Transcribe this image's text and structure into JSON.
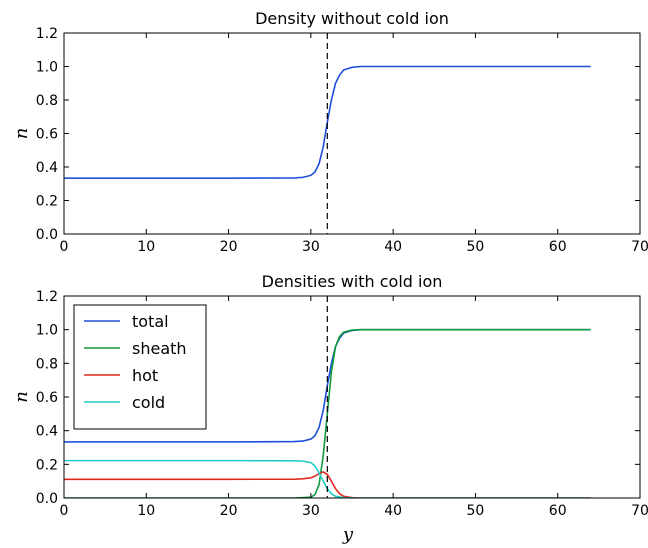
{
  "chart_data": [
    {
      "type": "line",
      "title": "Density without cold ion",
      "xlabel": "",
      "ylabel": "n",
      "xlim": [
        0,
        70
      ],
      "ylim": [
        0,
        1.2
      ],
      "xticks": [
        "0",
        "10",
        "20",
        "30",
        "40",
        "50",
        "60",
        "70"
      ],
      "yticks": [
        "0.0",
        "0.2",
        "0.4",
        "0.6",
        "0.8",
        "1.0",
        "1.2"
      ],
      "grid": false,
      "legend": null,
      "vline": {
        "x": 32,
        "style": "dashed",
        "color": "#000000"
      },
      "series": [
        {
          "color": "#1f4fd8",
          "points": [
            [
              0,
              0.333
            ],
            [
              10,
              0.333
            ],
            [
              20,
              0.333
            ],
            [
              28,
              0.335
            ],
            [
              29,
              0.338
            ],
            [
              30,
              0.35
            ],
            [
              30.5,
              0.37
            ],
            [
              31,
              0.42
            ],
            [
              31.5,
              0.52
            ],
            [
              32,
              0.667
            ],
            [
              32.5,
              0.8
            ],
            [
              33,
              0.9
            ],
            [
              33.5,
              0.95
            ],
            [
              34,
              0.98
            ],
            [
              35,
              0.995
            ],
            [
              36,
              1.0
            ],
            [
              40,
              1.0
            ],
            [
              50,
              1.0
            ],
            [
              60,
              1.0
            ],
            [
              64,
              1.0
            ]
          ]
        }
      ]
    },
    {
      "type": "line",
      "title": "Densities with cold ion",
      "xlabel": "y",
      "ylabel": "n",
      "xlim": [
        0,
        70
      ],
      "ylim": [
        0,
        1.2
      ],
      "xticks": [
        "0",
        "10",
        "20",
        "30",
        "40",
        "50",
        "60",
        "70"
      ],
      "yticks": [
        "0.0",
        "0.2",
        "0.4",
        "0.6",
        "0.8",
        "1.0",
        "1.2"
      ],
      "grid": false,
      "legend": "top-left",
      "vline": {
        "x": 32,
        "style": "dashed",
        "color": "#000000"
      },
      "series": [
        {
          "name": "total",
          "color": "#1f4fd8",
          "points": [
            [
              0,
              0.333
            ],
            [
              10,
              0.333
            ],
            [
              20,
              0.333
            ],
            [
              28,
              0.335
            ],
            [
              29,
              0.338
            ],
            [
              30,
              0.35
            ],
            [
              30.5,
              0.37
            ],
            [
              31,
              0.42
            ],
            [
              31.5,
              0.52
            ],
            [
              32,
              0.667
            ],
            [
              32.5,
              0.8
            ],
            [
              33,
              0.9
            ],
            [
              33.5,
              0.95
            ],
            [
              34,
              0.98
            ],
            [
              35,
              0.995
            ],
            [
              36,
              1.0
            ],
            [
              40,
              1.0
            ],
            [
              50,
              1.0
            ],
            [
              60,
              1.0
            ],
            [
              64,
              1.0
            ]
          ]
        },
        {
          "name": "sheath",
          "color": "#109a3c",
          "points": [
            [
              0,
              0
            ],
            [
              28,
              0
            ],
            [
              30,
              0.005
            ],
            [
              30.5,
              0.02
            ],
            [
              31,
              0.08
            ],
            [
              31.5,
              0.25
            ],
            [
              32,
              0.5
            ],
            [
              32.5,
              0.75
            ],
            [
              33,
              0.9
            ],
            [
              33.5,
              0.96
            ],
            [
              34,
              0.985
            ],
            [
              35,
              0.998
            ],
            [
              36,
              1.0
            ],
            [
              40,
              1.0
            ],
            [
              50,
              1.0
            ],
            [
              60,
              1.0
            ],
            [
              64,
              1.0
            ]
          ]
        },
        {
          "name": "hot",
          "color": "#dd2b1f",
          "points": [
            [
              0,
              0.111
            ],
            [
              10,
              0.111
            ],
            [
              20,
              0.111
            ],
            [
              28,
              0.112
            ],
            [
              29,
              0.114
            ],
            [
              30,
              0.12
            ],
            [
              30.5,
              0.13
            ],
            [
              31,
              0.145
            ],
            [
              31.5,
              0.155
            ],
            [
              32,
              0.14
            ],
            [
              32.5,
              0.1
            ],
            [
              33,
              0.055
            ],
            [
              33.5,
              0.025
            ],
            [
              34,
              0.01
            ],
            [
              35,
              0.002
            ],
            [
              36,
              0
            ],
            [
              50,
              0
            ],
            [
              64,
              0
            ]
          ]
        },
        {
          "name": "cold",
          "color": "#22cccc",
          "points": [
            [
              0,
              0.222
            ],
            [
              10,
              0.222
            ],
            [
              20,
              0.222
            ],
            [
              28,
              0.221
            ],
            [
              29,
              0.219
            ],
            [
              30,
              0.21
            ],
            [
              30.5,
              0.19
            ],
            [
              31,
              0.15
            ],
            [
              31.5,
              0.1
            ],
            [
              32,
              0.055
            ],
            [
              32.5,
              0.025
            ],
            [
              33,
              0.01
            ],
            [
              34,
              0.002
            ],
            [
              35,
              0
            ],
            [
              50,
              0
            ],
            [
              64,
              0
            ]
          ]
        }
      ]
    }
  ]
}
